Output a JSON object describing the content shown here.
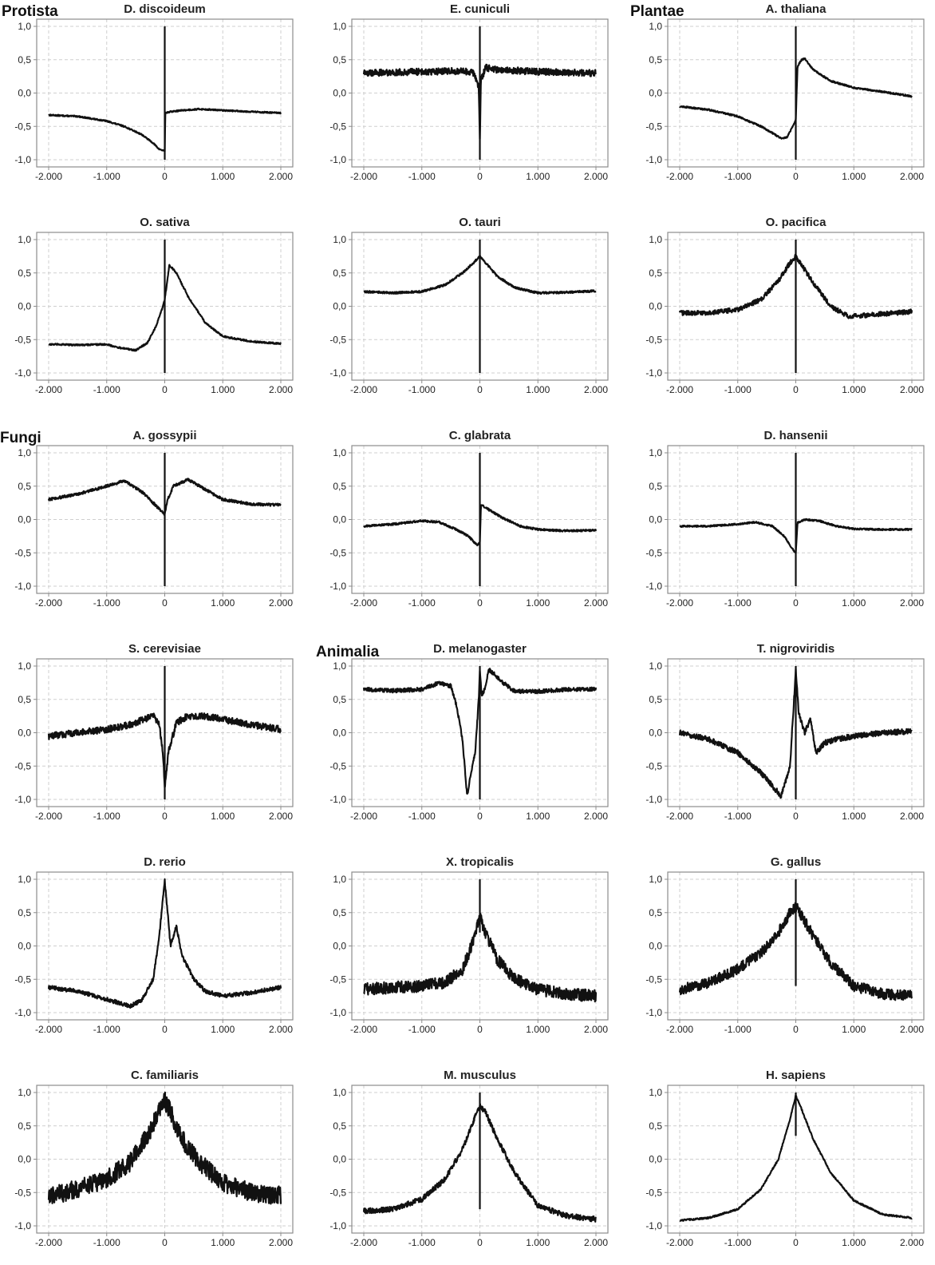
{
  "kingdoms": {
    "protista": "Protista",
    "plantae": "Plantae",
    "fungi": "Fungi",
    "animalia": "Animalia"
  },
  "colors": {
    "line": "#111111",
    "frame": "#8c8c8c",
    "grid": "#cfcfcf",
    "text": "#222222"
  },
  "chart_data": [
    {
      "type": "line",
      "title": "D. discoideum",
      "xlim": [
        -2000,
        2000
      ],
      "ylim": [
        -1,
        1
      ],
      "xticks": [
        "-2.000",
        "-1.000",
        "0",
        "1.000",
        "2.000"
      ],
      "yticks": [
        "-1,0",
        "-0,5",
        "0,0",
        "0,5",
        "1,0"
      ],
      "noise": 0.01,
      "spike": [
        -1,
        1
      ],
      "x": [
        -2000,
        -1500,
        -1000,
        -700,
        -400,
        -200,
        -100,
        0,
        10,
        100,
        300,
        600,
        1000,
        1500,
        2000
      ],
      "y": [
        -0.33,
        -0.35,
        -0.42,
        -0.5,
        -0.62,
        -0.75,
        -0.84,
        -0.87,
        -0.3,
        -0.28,
        -0.26,
        -0.24,
        -0.26,
        -0.28,
        -0.3
      ]
    },
    {
      "type": "line",
      "title": "E. cuniculi",
      "xlim": [
        -2000,
        2000
      ],
      "ylim": [
        -1,
        1
      ],
      "xticks": [
        "-2.000",
        "-1.000",
        "0",
        "1.000",
        "2.000"
      ],
      "yticks": [
        "-1,0",
        "-0,5",
        "0,0",
        "0,5",
        "1,0"
      ],
      "noise": 0.05,
      "spike": [
        -1,
        1
      ],
      "x": [
        -2000,
        -1000,
        -300,
        -100,
        -20,
        0,
        20,
        100,
        300,
        1000,
        2000
      ],
      "y": [
        0.3,
        0.32,
        0.33,
        0.3,
        0.1,
        -0.7,
        0.2,
        0.38,
        0.35,
        0.32,
        0.3
      ]
    },
    {
      "type": "line",
      "title": "A. thaliana",
      "xlim": [
        -2000,
        2000
      ],
      "ylim": [
        -1,
        1
      ],
      "xticks": [
        "-2.000",
        "-1.000",
        "0",
        "1.000",
        "2.000"
      ],
      "yticks": [
        "-1,0",
        "-0,5",
        "0,0",
        "0,5",
        "1,0"
      ],
      "noise": 0.012,
      "spike": [
        -1,
        1
      ],
      "x": [
        -2000,
        -1500,
        -1000,
        -600,
        -400,
        -250,
        -150,
        -50,
        0,
        30,
        100,
        150,
        300,
        600,
        1000,
        1500,
        2000
      ],
      "y": [
        -0.2,
        -0.25,
        -0.35,
        -0.5,
        -0.6,
        -0.68,
        -0.66,
        -0.5,
        -0.4,
        0.4,
        0.5,
        0.52,
        0.35,
        0.18,
        0.08,
        0.02,
        -0.05
      ]
    },
    {
      "type": "line",
      "title": "O. sativa",
      "xlim": [
        -2000,
        2000
      ],
      "ylim": [
        -1,
        1
      ],
      "xticks": [
        "-2.000",
        "-1.000",
        "0",
        "1.000",
        "2.000"
      ],
      "yticks": [
        "-1,0",
        "-0,5",
        "0,0",
        "0,5",
        "1,0"
      ],
      "noise": 0.012,
      "spike": [
        -1,
        1
      ],
      "x": [
        -2000,
        -1500,
        -1000,
        -800,
        -500,
        -300,
        -150,
        -50,
        0,
        80,
        200,
        400,
        700,
        1000,
        1500,
        2000
      ],
      "y": [
        -0.57,
        -0.58,
        -0.57,
        -0.62,
        -0.66,
        -0.55,
        -0.3,
        -0.05,
        0.1,
        0.62,
        0.5,
        0.15,
        -0.25,
        -0.45,
        -0.53,
        -0.56
      ]
    },
    {
      "type": "line",
      "title": "O. tauri",
      "xlim": [
        -2000,
        2000
      ],
      "ylim": [
        -1,
        1
      ],
      "xticks": [
        "-2.000",
        "-1.000",
        "0",
        "1.000",
        "2.000"
      ],
      "yticks": [
        "-1,0",
        "-0,5",
        "0,0",
        "0,5",
        "1,0"
      ],
      "noise": 0.015,
      "spike": [
        -1,
        1
      ],
      "x": [
        -2000,
        -1500,
        -1000,
        -600,
        -300,
        -100,
        0,
        100,
        300,
        600,
        1000,
        1500,
        2000
      ],
      "y": [
        0.22,
        0.2,
        0.22,
        0.32,
        0.5,
        0.66,
        0.75,
        0.65,
        0.45,
        0.28,
        0.2,
        0.21,
        0.23
      ]
    },
    {
      "type": "line",
      "title": "O. pacifica",
      "xlim": [
        -2000,
        2000
      ],
      "ylim": [
        -1,
        1
      ],
      "xticks": [
        "-2.000",
        "-1.000",
        "0",
        "1.000",
        "2.000"
      ],
      "yticks": [
        "-1,0",
        "-0,5",
        "0,0",
        "0,5",
        "1,0"
      ],
      "noise": 0.035,
      "spike": [
        -1,
        1
      ],
      "x": [
        -2000,
        -1500,
        -1000,
        -600,
        -300,
        -100,
        0,
        100,
        300,
        600,
        900,
        1300,
        1700,
        2000
      ],
      "y": [
        -0.1,
        -0.1,
        -0.05,
        0.1,
        0.38,
        0.65,
        0.75,
        0.62,
        0.35,
        0.0,
        -0.15,
        -0.13,
        -0.1,
        -0.08
      ]
    },
    {
      "type": "line",
      "title": "A. gossypii",
      "xlim": [
        -2000,
        2000
      ],
      "ylim": [
        -1,
        1
      ],
      "xticks": [
        "-2.000",
        "-1.000",
        "0",
        "1.000",
        "2.000"
      ],
      "yticks": [
        "-1,0",
        "-0,5",
        "0,0",
        "0,5",
        "1,0"
      ],
      "noise": 0.02,
      "spike": [
        -1,
        1
      ],
      "x": [
        -2000,
        -1500,
        -1000,
        -700,
        -400,
        -200,
        -50,
        0,
        50,
        150,
        400,
        700,
        1000,
        1500,
        2000
      ],
      "y": [
        0.3,
        0.38,
        0.5,
        0.58,
        0.42,
        0.25,
        0.12,
        0.08,
        0.3,
        0.5,
        0.6,
        0.45,
        0.3,
        0.23,
        0.22
      ]
    },
    {
      "type": "line",
      "title": "C. glabrata",
      "xlim": [
        -2000,
        2000
      ],
      "ylim": [
        -1,
        1
      ],
      "xticks": [
        "-2.000",
        "-1.000",
        "0",
        "1.000",
        "2.000"
      ],
      "yticks": [
        "-1,0",
        "-0,5",
        "0,0",
        "0,5",
        "1,0"
      ],
      "noise": 0.015,
      "spike": [
        -1,
        1
      ],
      "x": [
        -2000,
        -1500,
        -1000,
        -700,
        -400,
        -200,
        -50,
        0,
        20,
        150,
        400,
        700,
        1000,
        1500,
        2000
      ],
      "y": [
        -0.1,
        -0.07,
        -0.02,
        -0.04,
        -0.15,
        -0.25,
        -0.38,
        -0.35,
        0.22,
        0.15,
        0.02,
        -0.1,
        -0.15,
        -0.17,
        -0.16
      ]
    },
    {
      "type": "line",
      "title": "D. hansenii",
      "xlim": [
        -2000,
        2000
      ],
      "ylim": [
        -1,
        1
      ],
      "xticks": [
        "-2.000",
        "-1.000",
        "0",
        "1.000",
        "2.000"
      ],
      "yticks": [
        "-1,0",
        "-0,5",
        "0,0",
        "0,5",
        "1,0"
      ],
      "noise": 0.012,
      "spike": [
        -1,
        1
      ],
      "x": [
        -2000,
        -1500,
        -1000,
        -700,
        -400,
        -200,
        -50,
        0,
        30,
        150,
        400,
        700,
        1000,
        1500,
        2000
      ],
      "y": [
        -0.1,
        -0.1,
        -0.07,
        -0.04,
        -0.1,
        -0.25,
        -0.45,
        -0.5,
        -0.05,
        0.0,
        -0.02,
        -0.1,
        -0.14,
        -0.15,
        -0.15
      ]
    },
    {
      "type": "line",
      "title": "S. cerevisiae",
      "xlim": [
        -2000,
        2000
      ],
      "ylim": [
        -1,
        1
      ],
      "xticks": [
        "-2.000",
        "-1.000",
        "0",
        "1.000",
        "2.000"
      ],
      "yticks": [
        "-1,0",
        "-0,5",
        "0,0",
        "0,5",
        "1,0"
      ],
      "noise": 0.05,
      "spike": [
        -1,
        1
      ],
      "x": [
        -2000,
        -1500,
        -1000,
        -600,
        -200,
        -100,
        -30,
        0,
        60,
        200,
        400,
        700,
        1000,
        1500,
        2000
      ],
      "y": [
        -0.05,
        0.0,
        0.05,
        0.12,
        0.25,
        0.15,
        -0.3,
        -0.85,
        -0.3,
        0.15,
        0.25,
        0.25,
        0.2,
        0.12,
        0.05
      ]
    },
    {
      "type": "line",
      "title": "D. melanogaster",
      "xlim": [
        -2000,
        2000
      ],
      "ylim": [
        -1,
        1
      ],
      "xticks": [
        "-2.000",
        "-1.000",
        "0",
        "1.000",
        "2.000"
      ],
      "yticks": [
        "-1,0",
        "-0,5",
        "0,0",
        "0,5",
        "1,0"
      ],
      "noise": 0.03,
      "spike": [
        -1,
        1
      ],
      "x": [
        -2000,
        -1500,
        -1000,
        -700,
        -500,
        -400,
        -300,
        -220,
        -150,
        -80,
        -20,
        0,
        30,
        100,
        150,
        250,
        400,
        600,
        1000,
        1500,
        2000
      ],
      "y": [
        0.65,
        0.63,
        0.65,
        0.75,
        0.7,
        0.4,
        -0.1,
        -0.95,
        -0.6,
        -0.3,
        0.5,
        0.95,
        0.55,
        0.7,
        0.95,
        0.88,
        0.75,
        0.62,
        0.62,
        0.65,
        0.65
      ]
    },
    {
      "type": "line",
      "title": "T. nigroviridis",
      "xlim": [
        -2000,
        2000
      ],
      "ylim": [
        -1,
        1
      ],
      "xticks": [
        "-2.000",
        "-1.000",
        "0",
        "1.000",
        "2.000"
      ],
      "yticks": [
        "-1,0",
        "-0,5",
        "0,0",
        "0,5",
        "1,0"
      ],
      "noise": 0.04,
      "spike": [
        -1,
        1
      ],
      "x": [
        -2000,
        -1500,
        -1000,
        -600,
        -400,
        -250,
        -100,
        -30,
        0,
        50,
        150,
        250,
        350,
        500,
        700,
        1000,
        1500,
        2000
      ],
      "y": [
        0.0,
        -0.1,
        -0.3,
        -0.6,
        -0.8,
        -0.95,
        -0.5,
        0.5,
        0.95,
        0.3,
        0.0,
        0.2,
        -0.3,
        -0.15,
        -0.1,
        -0.05,
        0.0,
        0.02
      ]
    },
    {
      "type": "line",
      "title": "D. rerio",
      "xlim": [
        -2000,
        2000
      ],
      "ylim": [
        -1,
        1
      ],
      "xticks": [
        "-2.000",
        "-1.000",
        "0",
        "1.000",
        "2.000"
      ],
      "yticks": [
        "-1,0",
        "-0,5",
        "0,0",
        "0,5",
        "1,0"
      ],
      "noise": 0.03,
      "spike": null,
      "x": [
        -2000,
        -1500,
        -1000,
        -600,
        -400,
        -200,
        -100,
        0,
        50,
        100,
        200,
        300,
        500,
        700,
        1000,
        1500,
        2000
      ],
      "y": [
        -0.62,
        -0.68,
        -0.8,
        -0.9,
        -0.82,
        -0.5,
        0.1,
        0.98,
        0.5,
        0.0,
        0.3,
        -0.15,
        -0.5,
        -0.68,
        -0.75,
        -0.7,
        -0.62
      ]
    },
    {
      "type": "line",
      "title": "X. tropicalis",
      "xlim": [
        -2000,
        2000
      ],
      "ylim": [
        -1,
        1
      ],
      "xticks": [
        "-2.000",
        "-1.000",
        "0",
        "1.000",
        "2.000"
      ],
      "yticks": [
        "-1,0",
        "-0,5",
        "0,0",
        "0,5",
        "1,0"
      ],
      "noise": 0.09,
      "spike": [
        0.2,
        1
      ],
      "x": [
        -2000,
        -1500,
        -1000,
        -600,
        -300,
        -100,
        0,
        100,
        300,
        600,
        1000,
        1500,
        2000
      ],
      "y": [
        -0.65,
        -0.62,
        -0.6,
        -0.55,
        -0.35,
        0.1,
        0.45,
        0.2,
        -0.2,
        -0.5,
        -0.65,
        -0.72,
        -0.75
      ]
    },
    {
      "type": "line",
      "title": "G. gallus",
      "xlim": [
        -2000,
        2000
      ],
      "ylim": [
        -1,
        1
      ],
      "xticks": [
        "-2.000",
        "-1.000",
        "0",
        "1.000",
        "2.000"
      ],
      "yticks": [
        "-1,0",
        "-0,5",
        "0,0",
        "0,5",
        "1,0"
      ],
      "noise": 0.08,
      "spike": [
        -0.6,
        1
      ],
      "x": [
        -2000,
        -1500,
        -1000,
        -600,
        -300,
        -100,
        0,
        100,
        300,
        600,
        1000,
        1500,
        2000
      ],
      "y": [
        -0.65,
        -0.55,
        -0.35,
        -0.1,
        0.2,
        0.5,
        0.6,
        0.45,
        0.15,
        -0.25,
        -0.6,
        -0.72,
        -0.75
      ]
    },
    {
      "type": "line",
      "title": "C. familiaris",
      "xlim": [
        -2000,
        2000
      ],
      "ylim": [
        -1,
        1
      ],
      "xticks": [
        "-2.000",
        "-1.000",
        "0",
        "1.000",
        "2.000"
      ],
      "yticks": [
        "-1,0",
        "-0,5",
        "0,0",
        "0,5",
        "1,0"
      ],
      "noise": 0.14,
      "spike": null,
      "x": [
        -2000,
        -1500,
        -1000,
        -600,
        -300,
        -100,
        0,
        100,
        300,
        600,
        1000,
        1500,
        2000
      ],
      "y": [
        -0.55,
        -0.45,
        -0.3,
        -0.05,
        0.35,
        0.7,
        0.88,
        0.7,
        0.3,
        -0.05,
        -0.35,
        -0.5,
        -0.55
      ]
    },
    {
      "type": "line",
      "title": "M. musculus",
      "xlim": [
        -2000,
        2000
      ],
      "ylim": [
        -1,
        1
      ],
      "xticks": [
        "-2.000",
        "-1.000",
        "0",
        "1.000",
        "2.000"
      ],
      "yticks": [
        "-1,0",
        "-0,5",
        "0,0",
        "0,5",
        "1,0"
      ],
      "noise": 0.04,
      "spike": [
        -0.75,
        1
      ],
      "x": [
        -2000,
        -1500,
        -1000,
        -600,
        -300,
        -100,
        0,
        100,
        300,
        600,
        1000,
        1500,
        2000
      ],
      "y": [
        -0.78,
        -0.75,
        -0.6,
        -0.3,
        0.15,
        0.6,
        0.8,
        0.7,
        0.3,
        -0.2,
        -0.7,
        -0.85,
        -0.9
      ]
    },
    {
      "type": "line",
      "title": "H. sapiens",
      "xlim": [
        -2000,
        2000
      ],
      "ylim": [
        -1,
        1
      ],
      "xticks": [
        "-2.000",
        "-1.000",
        "0",
        "1.000",
        "2.000"
      ],
      "yticks": [
        "-1,0",
        "-0,5",
        "0,0",
        "0,5",
        "1,0"
      ],
      "noise": 0.012,
      "spike": [
        0.35,
        1
      ],
      "x": [
        -2000,
        -1500,
        -1000,
        -600,
        -300,
        -100,
        0,
        100,
        300,
        600,
        1000,
        1500,
        2000
      ],
      "y": [
        -0.92,
        -0.88,
        -0.75,
        -0.45,
        0.0,
        0.6,
        0.95,
        0.75,
        0.3,
        -0.2,
        -0.62,
        -0.83,
        -0.88
      ]
    }
  ]
}
